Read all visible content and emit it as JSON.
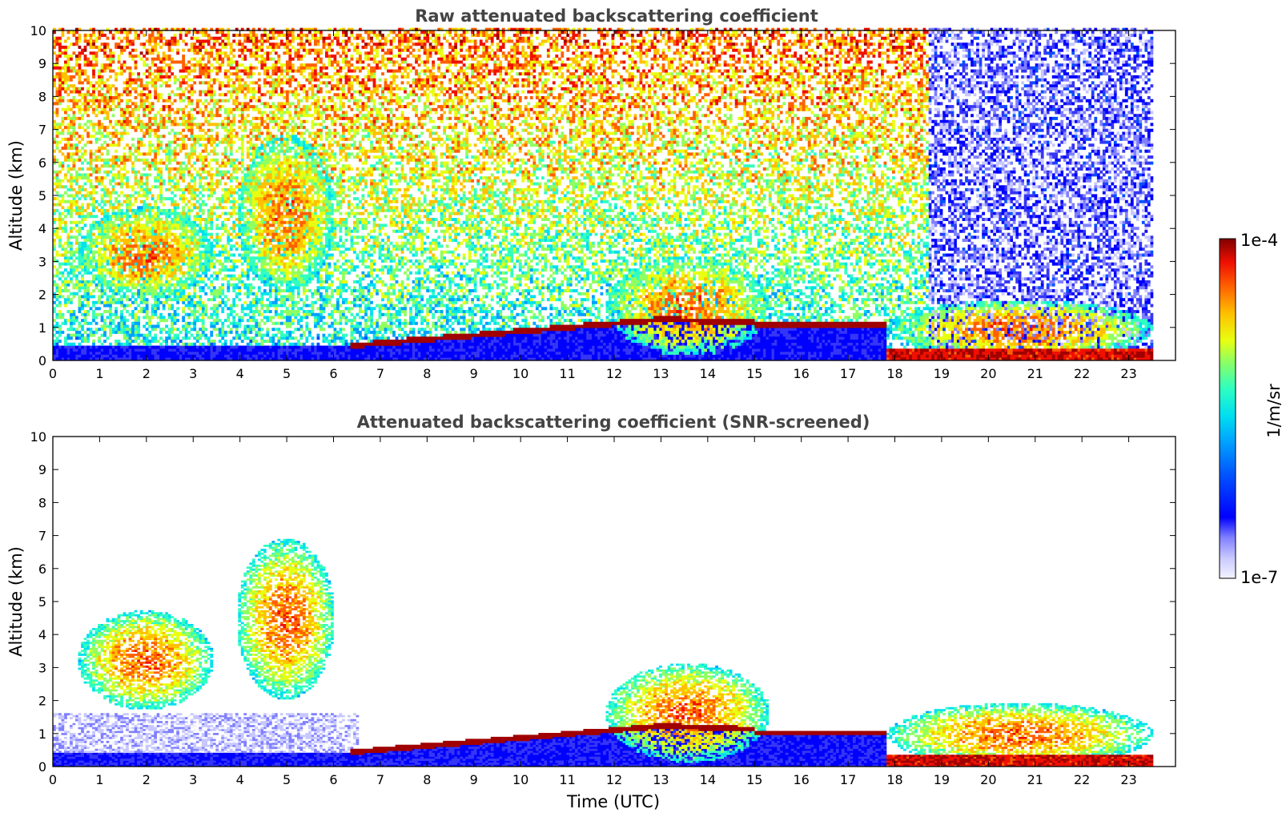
{
  "chart_data": [
    {
      "type": "heatmap",
      "title": "Raw attenuated backscattering coefficient",
      "xlabel": "",
      "ylabel": "Altitude (km)",
      "xlim": [
        0,
        24
      ],
      "ylim": [
        0,
        10
      ],
      "xticks": [
        "0",
        "1",
        "2",
        "3",
        "4",
        "5",
        "6",
        "7",
        "8",
        "9",
        "10",
        "11",
        "12",
        "13",
        "14",
        "15",
        "16",
        "17",
        "18",
        "19",
        "20",
        "21",
        "22",
        "23"
      ],
      "yticks": [
        "0",
        "1",
        "2",
        "3",
        "4",
        "5",
        "6",
        "7",
        "8",
        "9",
        "10"
      ],
      "data_end_hour": 23.5,
      "noise": "high",
      "features": [
        {
          "name": "mid-level cloud",
          "t_start": 0.5,
          "t_end": 3.4,
          "alt_bottom": 1.8,
          "alt_top": 4.6
        },
        {
          "name": "mid-level cloud",
          "t_start": 3.9,
          "t_end": 6.0,
          "alt_bottom": 2.0,
          "alt_top": 6.8
        },
        {
          "name": "aerosol/cloud layer top",
          "t_start": 6.3,
          "t_end": 18.0,
          "alt_start": 0.4,
          "alt_peak": 1.2,
          "alt_end": 1.0
        },
        {
          "name": "cloud",
          "t_start": 11.8,
          "t_end": 15.3,
          "alt_bottom": 0.1,
          "alt_top": 3.1
        },
        {
          "name": "low cloud / precipitation",
          "t_start": 17.8,
          "t_end": 23.5,
          "alt_bottom": 0.0,
          "alt_top": 1.8
        }
      ]
    },
    {
      "type": "heatmap",
      "title": "Attenuated backscattering coefficient (SNR-screened)",
      "xlabel": "Time (UTC)",
      "ylabel": "Altitude (km)",
      "xlim": [
        0,
        24
      ],
      "ylim": [
        0,
        10
      ],
      "xticks": [
        "0",
        "1",
        "2",
        "3",
        "4",
        "5",
        "6",
        "7",
        "8",
        "9",
        "10",
        "11",
        "12",
        "13",
        "14",
        "15",
        "16",
        "17",
        "18",
        "19",
        "20",
        "21",
        "22",
        "23"
      ],
      "yticks": [
        "0",
        "1",
        "2",
        "3",
        "4",
        "5",
        "6",
        "7",
        "8",
        "9",
        "10"
      ],
      "data_end_hour": 23.5,
      "noise": "screened",
      "features": [
        {
          "name": "mid-level cloud",
          "t_start": 0.5,
          "t_end": 3.4,
          "alt_bottom": 1.7,
          "alt_top": 4.7
        },
        {
          "name": "mid-level cloud",
          "t_start": 3.9,
          "t_end": 6.0,
          "alt_bottom": 2.0,
          "alt_top": 6.9
        },
        {
          "name": "aerosol/cloud layer top",
          "t_start": 6.3,
          "t_end": 18.0,
          "alt_start": 0.4,
          "alt_peak": 1.2,
          "alt_end": 1.0
        },
        {
          "name": "cloud",
          "t_start": 11.8,
          "t_end": 15.3,
          "alt_bottom": 0.1,
          "alt_top": 3.1
        },
        {
          "name": "low cloud / precipitation",
          "t_start": 17.8,
          "t_end": 23.5,
          "alt_bottom": 0.0,
          "alt_top": 1.9
        }
      ]
    }
  ],
  "colorbar": {
    "label": "1/m/sr",
    "max_label": "1e-4",
    "min_label": "1e-7",
    "colormap": [
      "#f3f3ff",
      "#c8c8ff",
      "#8080ff",
      "#3535f5",
      "#0000ff",
      "#0050ff",
      "#00a0ff",
      "#00e0f0",
      "#30ffc0",
      "#90ff60",
      "#e8ff10",
      "#ffc000",
      "#ff6000",
      "#f01000",
      "#a00000",
      "#800000"
    ]
  }
}
